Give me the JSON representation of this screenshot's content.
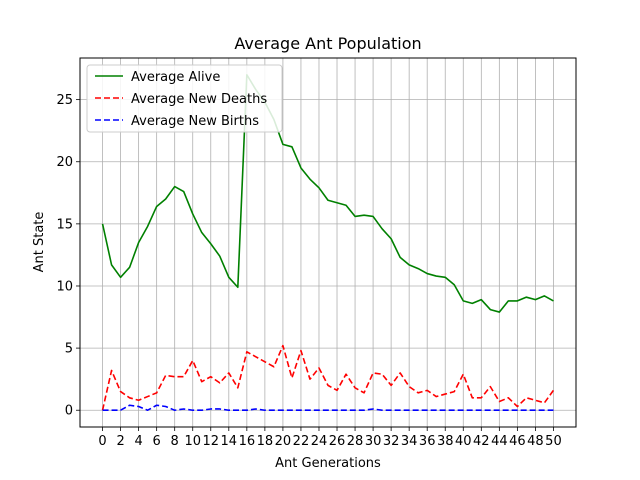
{
  "chart_data": {
    "type": "line",
    "title": "Average Ant Population",
    "xlabel": "Ant Generations",
    "ylabel": "Ant State",
    "xlim": [
      -2.5,
      52.5
    ],
    "ylim": [
      -1.35,
      28.35
    ],
    "x": [
      0,
      1,
      2,
      3,
      4,
      5,
      6,
      7,
      8,
      9,
      10,
      11,
      12,
      13,
      14,
      15,
      16,
      17,
      18,
      19,
      20,
      21,
      22,
      23,
      24,
      25,
      26,
      27,
      28,
      29,
      30,
      31,
      32,
      33,
      34,
      35,
      36,
      37,
      38,
      39,
      40,
      41,
      42,
      43,
      44,
      45,
      46,
      47,
      48,
      49,
      50
    ],
    "x_ticks": [
      0,
      2,
      4,
      6,
      8,
      10,
      12,
      14,
      16,
      18,
      20,
      22,
      24,
      26,
      28,
      30,
      32,
      34,
      36,
      38,
      40,
      42,
      44,
      46,
      48,
      50
    ],
    "y_ticks": [
      0,
      5,
      10,
      15,
      20,
      25
    ],
    "grid": true,
    "legend_position": "top-left",
    "series": [
      {
        "name": "Average Alive",
        "color": "#008000",
        "style": "solid",
        "values": [
          15.0,
          11.7,
          10.7,
          11.5,
          13.5,
          14.8,
          16.4,
          17.0,
          18.0,
          17.6,
          15.8,
          14.3,
          13.4,
          12.4,
          10.7,
          9.9,
          27.0,
          25.8,
          24.8,
          23.4,
          21.4,
          21.2,
          19.5,
          18.6,
          17.9,
          16.9,
          16.7,
          16.5,
          15.6,
          15.7,
          15.6,
          14.6,
          13.8,
          12.3,
          11.7,
          11.4,
          11.0,
          10.8,
          10.7,
          10.1,
          8.8,
          8.6,
          8.9,
          8.1,
          7.9,
          8.8,
          8.8,
          9.1,
          8.9,
          9.2,
          8.8
        ]
      },
      {
        "name": "Average New Deaths",
        "color": "#ff0000",
        "style": "dashed",
        "values": [
          0.0,
          3.2,
          1.5,
          1.0,
          0.8,
          1.1,
          1.4,
          2.8,
          2.7,
          2.7,
          4.0,
          2.3,
          2.7,
          2.2,
          3.0,
          1.8,
          4.7,
          4.3,
          3.9,
          3.5,
          5.2,
          2.6,
          4.8,
          2.5,
          3.4,
          2.0,
          1.6,
          2.9,
          1.8,
          1.4,
          3.0,
          2.9,
          2.0,
          3.0,
          1.9,
          1.4,
          1.6,
          1.1,
          1.3,
          1.5,
          2.9,
          1.0,
          1.0,
          1.9,
          0.7,
          1.0,
          0.3,
          1.0,
          0.8,
          0.6,
          1.6
        ]
      },
      {
        "name": "Average New Births",
        "color": "#0000ff",
        "style": "dashed",
        "values": [
          0.0,
          0.0,
          0.0,
          0.4,
          0.3,
          0.0,
          0.4,
          0.3,
          0.0,
          0.1,
          0.0,
          0.0,
          0.1,
          0.1,
          0.0,
          0.0,
          0.0,
          0.1,
          0.0,
          0.0,
          0.0,
          0.0,
          0.0,
          0.0,
          0.0,
          0.0,
          0.0,
          0.0,
          0.0,
          0.0,
          0.1,
          0.0,
          0.0,
          0.0,
          0.0,
          0.0,
          0.0,
          0.0,
          0.0,
          0.0,
          0.0,
          0.0,
          0.0,
          0.0,
          0.0,
          0.0,
          0.0,
          0.0,
          0.0,
          0.0,
          0.0
        ]
      }
    ]
  }
}
